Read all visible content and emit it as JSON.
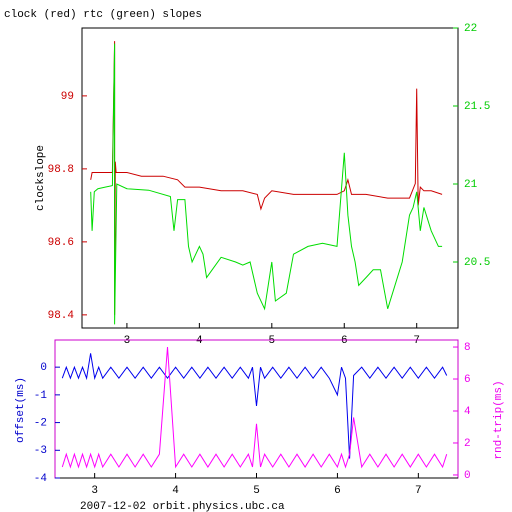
{
  "chart_data": [
    {
      "type": "line",
      "title": "clock (red) rtc (green) slopes",
      "ylabel": "clockslope",
      "xlim": [
        2.38,
        7.57
      ],
      "xticks": [
        3,
        4,
        5,
        6,
        7
      ],
      "ylim": [
        98.364,
        99.186
      ],
      "yticks": [
        98.4,
        98.6,
        98.8,
        99
      ],
      "ytick_color": "#cc0000",
      "y2lim": [
        20.077,
        22
      ],
      "y2ticks": [
        20.5,
        21,
        21.5,
        22
      ],
      "y2tick_color": "#00cc00",
      "series": [
        {
          "name": "clock",
          "color": "#cc0000",
          "x": [
            2.5,
            2.52,
            2.55,
            2.7,
            2.8,
            2.83,
            2.83,
            2.84,
            2.85,
            2.9,
            3.0,
            3.2,
            3.5,
            3.7,
            3.8,
            4.0,
            4.3,
            4.6,
            4.8,
            4.85,
            4.9,
            5.0,
            5.3,
            5.6,
            5.9,
            6.0,
            6.05,
            6.1,
            6.3,
            6.6,
            6.9,
            6.98,
            7.0,
            7.02,
            7.05,
            7.1,
            7.2,
            7.35
          ],
          "values": [
            98.77,
            98.79,
            98.79,
            98.79,
            98.79,
            99.15,
            98.4,
            98.82,
            98.79,
            98.79,
            98.79,
            98.78,
            98.78,
            98.77,
            98.75,
            98.75,
            98.74,
            98.74,
            98.73,
            98.69,
            98.72,
            98.74,
            98.73,
            98.73,
            98.73,
            98.74,
            98.77,
            98.73,
            98.73,
            98.72,
            98.72,
            98.76,
            99.02,
            98.7,
            98.75,
            98.74,
            98.74,
            98.73
          ]
        },
        {
          "name": "rtc",
          "color": "#00dd00",
          "axis": "y2",
          "x": [
            2.5,
            2.52,
            2.55,
            2.6,
            2.7,
            2.8,
            2.83,
            2.83,
            2.86,
            3.0,
            3.3,
            3.6,
            3.65,
            3.7,
            3.8,
            3.85,
            3.9,
            4.0,
            4.05,
            4.1,
            4.3,
            4.5,
            4.6,
            4.7,
            4.8,
            4.9,
            4.95,
            5.0,
            5.05,
            5.2,
            5.3,
            5.5,
            5.7,
            5.9,
            6.0,
            6.05,
            6.1,
            6.15,
            6.2,
            6.3,
            6.4,
            6.5,
            6.6,
            6.8,
            6.9,
            6.95,
            7.0,
            7.05,
            7.1,
            7.2,
            7.3,
            7.35
          ],
          "values": [
            20.95,
            20.7,
            20.95,
            20.97,
            20.98,
            20.99,
            21.9,
            20.1,
            21.0,
            20.97,
            20.96,
            20.92,
            20.7,
            20.9,
            20.9,
            20.6,
            20.5,
            20.6,
            20.55,
            20.4,
            20.53,
            20.5,
            20.48,
            20.5,
            20.3,
            20.2,
            20.35,
            20.5,
            20.25,
            20.3,
            20.55,
            20.6,
            20.62,
            20.6,
            21.2,
            20.8,
            20.6,
            20.5,
            20.35,
            20.4,
            20.45,
            20.45,
            20.2,
            20.5,
            20.8,
            20.85,
            20.95,
            20.7,
            20.85,
            20.7,
            20.6,
            20.6
          ]
        }
      ]
    },
    {
      "type": "line",
      "ylabel": "offset(ms)",
      "y2label": "rnd-trip(ms)",
      "footer": "2007-12-02 orbit.physics.ubc.ca",
      "xlim": [
        2.51,
        7.49
      ],
      "xticks": [
        3,
        4,
        5,
        6,
        7
      ],
      "ylim": [
        -4,
        0.98
      ],
      "yticks": [
        -4,
        -3,
        -2,
        -1,
        0
      ],
      "ytick_color": "#0000cc",
      "y2lim": [
        -0.19,
        8.44
      ],
      "y2ticks": [
        0,
        2,
        4,
        6,
        8
      ],
      "y2tick_color": "#ee00ee",
      "x": [
        2.6,
        2.65,
        2.7,
        2.75,
        2.8,
        2.85,
        2.9,
        2.95,
        3.0,
        3.05,
        3.1,
        3.2,
        3.3,
        3.4,
        3.5,
        3.6,
        3.7,
        3.8,
        3.9,
        4.0,
        4.1,
        4.2,
        4.3,
        4.4,
        4.5,
        4.6,
        4.7,
        4.8,
        4.9,
        4.95,
        5.0,
        5.05,
        5.1,
        5.2,
        5.3,
        5.4,
        5.5,
        5.6,
        5.7,
        5.8,
        5.9,
        6.0,
        6.05,
        6.1,
        6.15,
        6.2,
        6.3,
        6.4,
        6.5,
        6.6,
        6.7,
        6.8,
        6.9,
        7.0,
        7.1,
        7.2,
        7.3,
        7.35
      ],
      "series": [
        {
          "name": "offset",
          "color": "#0000ee",
          "values": [
            -0.4,
            0,
            -0.4,
            0,
            -0.4,
            0,
            -0.4,
            0.5,
            -0.4,
            0,
            -0.4,
            0,
            -0.4,
            0,
            -0.4,
            0,
            -0.4,
            0,
            -0.4,
            0,
            -0.4,
            0,
            -0.4,
            0,
            -0.4,
            0,
            -0.4,
            0,
            -0.4,
            0,
            -1.4,
            0,
            -0.4,
            0,
            -0.4,
            0,
            -0.4,
            0,
            -0.4,
            0,
            -0.4,
            -1.0,
            0,
            -0.4,
            -3.3,
            -0.3,
            0,
            -0.4,
            0,
            -0.4,
            0,
            -0.4,
            0,
            -0.4,
            0,
            -0.4,
            0,
            -0.3
          ]
        },
        {
          "name": "rnd-trip",
          "color": "#ff00ff",
          "axis": "y2",
          "values": [
            0.5,
            1.3,
            0.5,
            1.3,
            0.5,
            1.3,
            0.5,
            1.3,
            0.5,
            1.3,
            0.5,
            1.3,
            0.5,
            1.3,
            0.5,
            1.3,
            0.5,
            1.3,
            8.0,
            0.5,
            1.3,
            0.5,
            1.3,
            0.5,
            1.3,
            0.5,
            1.3,
            0.5,
            1.3,
            0.5,
            3.2,
            0.5,
            1.3,
            0.5,
            1.3,
            0.5,
            1.3,
            0.5,
            1.3,
            0.5,
            1.3,
            0.5,
            1.3,
            0.5,
            1.3,
            3.6,
            0.5,
            1.3,
            0.5,
            1.3,
            0.5,
            1.3,
            0.5,
            1.3,
            0.5,
            1.3,
            0.5,
            1.3
          ]
        }
      ]
    }
  ]
}
